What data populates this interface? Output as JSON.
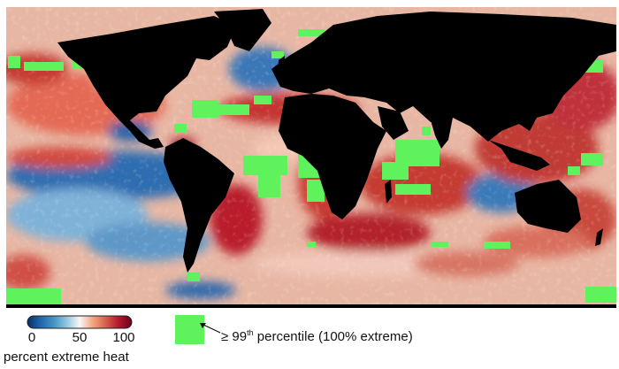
{
  "colorbar": {
    "ticks": [
      "0",
      "50",
      "100"
    ],
    "label": "percent extreme heat",
    "colors": [
      "#053061",
      "#2166ac",
      "#4393c3",
      "#92c5de",
      "#f7f7f7",
      "#f4a582",
      "#d6604d",
      "#b2182b",
      "#67001f"
    ]
  },
  "legend": {
    "swatch_color": "#5ff25c",
    "text_prefix": "≥ 99",
    "text_sup": "th",
    "text_suffix": " percentile (100% extreme)"
  },
  "map": {
    "land_color": "#000000",
    "projection": "equirectangular"
  }
}
